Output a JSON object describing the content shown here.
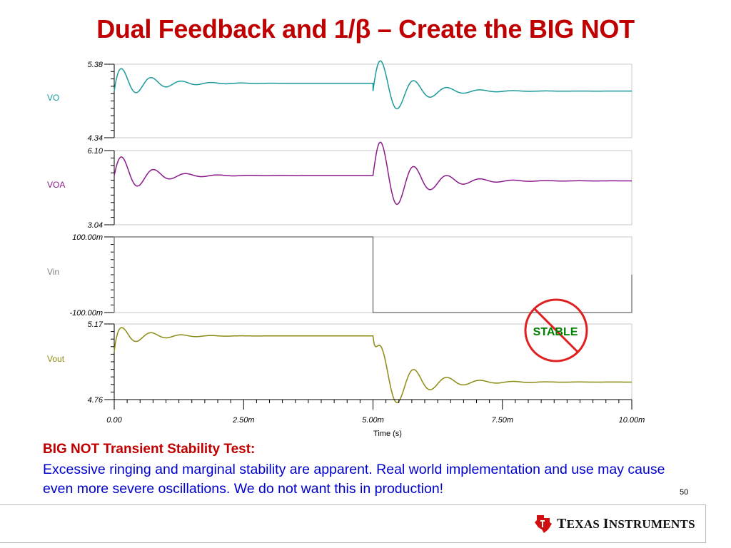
{
  "slide": {
    "title": "Dual Feedback and 1/β – Create the BIG NOT",
    "heading": "BIG NOT Transient Stability Test:",
    "body": "Excessive ringing and marginal stability are apparent.  Real world implementation and use may cause even more severe oscillations.  We do not want this in production!",
    "page_number": "50",
    "stamp_text": "STABLE",
    "logo_text": "Texas Instruments"
  },
  "colors": {
    "title": "#c00000",
    "body": "#0000cc",
    "VO": "#1a9a9a",
    "VOA": "#8b1a8b",
    "Vin": "#808080",
    "Vout": "#8b8b14",
    "stamp_circle": "#e02020",
    "stamp_text": "#008000"
  },
  "chart_data": {
    "type": "line",
    "xlabel": "Time (s)",
    "x_tick_labels": [
      "0.00",
      "2.50m",
      "5.00m",
      "7.50m",
      "10.00m"
    ],
    "xlim": [
      0,
      0.01
    ],
    "x_step_time": 0.005,
    "grid": false,
    "panels": [
      {
        "name": "VO",
        "ylim": [
          4.34,
          5.38
        ],
        "y_tick_labels": [
          "5.38",
          "4.34"
        ],
        "segment1": {
          "start": 5.0,
          "settle": 5.11,
          "amplitude": 0.27,
          "period": 0.00058,
          "tau": 0.0006
        },
        "segment2": {
          "start": 5.0,
          "settle": 5.0,
          "amplitude": 0.55,
          "period": 0.00064,
          "tau": 0.0006
        }
      },
      {
        "name": "VOA",
        "ylim": [
          3.04,
          6.1
        ],
        "y_tick_labels": [
          "6.10",
          "3.04"
        ],
        "segment1": {
          "start": 5.07,
          "settle": 5.07,
          "amplitude": 1.0,
          "period": 0.00062,
          "tau": 0.00055
        },
        "segment2": {
          "start": 5.07,
          "settle": 4.85,
          "amplitude": 2.0,
          "period": 0.00064,
          "tau": 0.00065
        }
      },
      {
        "name": "Vin",
        "type": "step",
        "ylim": [
          -0.1,
          0.1
        ],
        "y_tick_labels": [
          "100.00m",
          "-100.00m"
        ],
        "high": 0.1,
        "low": -0.1
      },
      {
        "name": "Vout",
        "ylim": [
          4.76,
          5.17
        ],
        "y_tick_labels": [
          "5.17",
          "4.76"
        ],
        "segment1": {
          "start": 5.02,
          "settle": 5.105,
          "amplitude": 0.065,
          "period": 0.00058,
          "tau": 0.00055
        },
        "segment2": {
          "start": 5.105,
          "settle": 4.855,
          "amplitude": 0.23,
          "period": 0.00064,
          "tau": 0.00065
        }
      }
    ]
  }
}
